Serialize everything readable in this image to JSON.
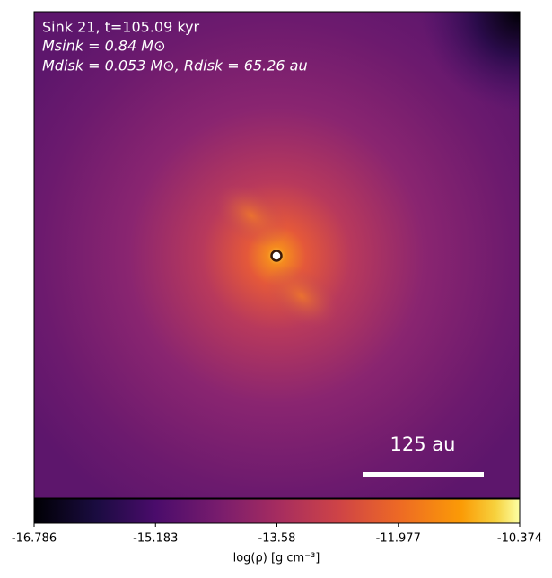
{
  "chart_data": {
    "type": "heatmap",
    "annotations": [
      "Sink 21, t=105.09 kyr",
      "Msink = 0.84 M⊙",
      "Mdisk = 0.053 M⊙, Rdisk = 65.26 au"
    ],
    "scale_bar_label": "125 au",
    "colorbar_label": "log(ρ) [g cm⁻³]",
    "clim": [
      -16.786,
      -10.374
    ],
    "cticks": [
      -16.786,
      -15.183,
      -13.58,
      -11.977,
      -10.374
    ],
    "colormap": "inferno"
  }
}
